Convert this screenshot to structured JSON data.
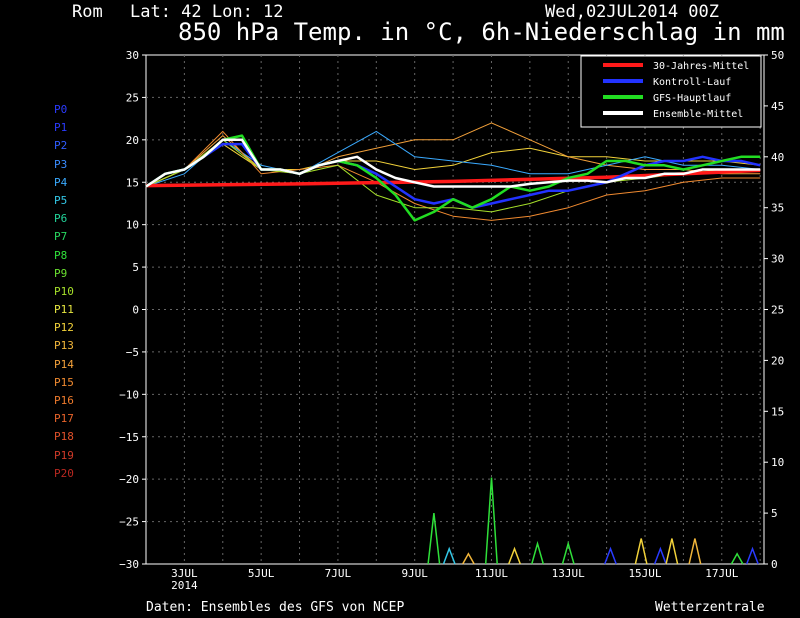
{
  "header": {
    "location": "Rom",
    "coords": "Lat: 42 Lon: 12",
    "run": "Wed,02JUL2014 00Z"
  },
  "title": "850 hPa Temp. in °C, 6h-Niederschlag in mm",
  "footer": {
    "source": "Daten: Ensembles des GFS von NCEP",
    "brand": "Wetterzentrale"
  },
  "members": [
    {
      "label": "P0",
      "color": "#2a3bff"
    },
    {
      "label": "P1",
      "color": "#2a3bff"
    },
    {
      "label": "P2",
      "color": "#2f5cff"
    },
    {
      "label": "P3",
      "color": "#3a8cff"
    },
    {
      "label": "P4",
      "color": "#3aaaff"
    },
    {
      "label": "P5",
      "color": "#33c7e6"
    },
    {
      "label": "P6",
      "color": "#22d49a"
    },
    {
      "label": "P7",
      "color": "#28d860"
    },
    {
      "label": "P8",
      "color": "#2fe03a"
    },
    {
      "label": "P9",
      "color": "#6ae030"
    },
    {
      "label": "P10",
      "color": "#a6e02a"
    },
    {
      "label": "P11",
      "color": "#e6e640"
    },
    {
      "label": "P12",
      "color": "#f2d23a"
    },
    {
      "label": "P13",
      "color": "#f2b63a"
    },
    {
      "label": "P14",
      "color": "#f2a03a"
    },
    {
      "label": "P15",
      "color": "#f08a30"
    },
    {
      "label": "P16",
      "color": "#ee7a2c"
    },
    {
      "label": "P17",
      "color": "#e8642a"
    },
    {
      "label": "P18",
      "color": "#e0502a"
    },
    {
      "label": "P19",
      "color": "#d03a28"
    },
    {
      "label": "P20",
      "color": "#b82820"
    }
  ],
  "chart_data": {
    "type": "line",
    "x_range": [
      "2014-07-02 00Z",
      "2014-07-18"
    ],
    "x_ticks": [
      {
        "pos": 1,
        "label": "3JUL",
        "sub": "2014"
      },
      {
        "pos": 3,
        "label": "5JUL"
      },
      {
        "pos": 5,
        "label": "7JUL"
      },
      {
        "pos": 7,
        "label": "9JUL"
      },
      {
        "pos": 9,
        "label": "11JUL"
      },
      {
        "pos": 11,
        "label": "13JUL"
      },
      {
        "pos": 13,
        "label": "15JUL"
      },
      {
        "pos": 15,
        "label": "17JUL"
      }
    ],
    "y_left": {
      "min": -30,
      "max": 30,
      "step": 5
    },
    "y_right": {
      "min": 0,
      "max": 50,
      "step": 5
    },
    "grid": true,
    "legend_position": "top-right",
    "legend": [
      {
        "label": "30-Jahres-Mittel",
        "color": "#ff1a1a"
      },
      {
        "label": "Kontroll-Lauf",
        "color": "#2233ff"
      },
      {
        "label": "GFS-Hauptlauf",
        "color": "#22dd22"
      },
      {
        "label": "Ensemble-Mittel",
        "color": "#ffffff"
      }
    ],
    "climatology": [
      [
        0,
        14.6
      ],
      [
        4,
        14.8
      ],
      [
        8,
        15.1
      ],
      [
        12,
        15.6
      ],
      [
        16,
        16.4
      ]
    ],
    "ensemble_mean": [
      [
        0,
        14.5
      ],
      [
        0.5,
        16
      ],
      [
        1,
        16.5
      ],
      [
        1.5,
        18
      ],
      [
        2,
        20
      ],
      [
        2.5,
        20
      ],
      [
        3,
        16.5
      ],
      [
        3.5,
        16.5
      ],
      [
        4,
        16
      ],
      [
        4.5,
        17
      ],
      [
        5,
        17.5
      ],
      [
        5.5,
        18
      ],
      [
        6,
        16.5
      ],
      [
        6.5,
        15.5
      ],
      [
        7,
        15
      ],
      [
        7.5,
        14.5
      ],
      [
        8,
        14.5
      ],
      [
        8.5,
        14.5
      ],
      [
        9,
        14.5
      ],
      [
        9.5,
        14.5
      ],
      [
        10,
        14.8
      ],
      [
        10.5,
        15.0
      ],
      [
        11,
        15.2
      ],
      [
        11.5,
        15.2
      ],
      [
        12,
        15.0
      ],
      [
        12.5,
        15.5
      ],
      [
        13,
        15.5
      ],
      [
        13.5,
        16
      ],
      [
        14,
        16
      ],
      [
        14.5,
        16.5
      ],
      [
        15,
        16.5
      ],
      [
        15.5,
        16.5
      ],
      [
        16,
        16.5
      ]
    ],
    "control_run": [
      [
        0,
        14.5
      ],
      [
        0.5,
        16
      ],
      [
        1,
        16.5
      ],
      [
        1.5,
        18
      ],
      [
        2,
        19.5
      ],
      [
        2.5,
        19.5
      ],
      [
        3,
        16.5
      ],
      [
        3.5,
        16.5
      ],
      [
        4,
        16
      ],
      [
        4.5,
        17
      ],
      [
        5,
        17.5
      ],
      [
        5.5,
        17
      ],
      [
        6,
        16
      ],
      [
        6.5,
        14.5
      ],
      [
        7,
        13
      ],
      [
        7.5,
        12.5
      ],
      [
        8,
        13
      ],
      [
        8.5,
        12
      ],
      [
        9,
        12.5
      ],
      [
        9.5,
        13
      ],
      [
        10,
        13.5
      ],
      [
        10.5,
        14
      ],
      [
        11,
        14
      ],
      [
        11.5,
        14.5
      ],
      [
        12,
        15
      ],
      [
        12.5,
        16
      ],
      [
        13,
        17
      ],
      [
        13.5,
        17.5
      ],
      [
        14,
        17.5
      ],
      [
        14.5,
        18
      ],
      [
        15,
        17.5
      ],
      [
        15.5,
        17.5
      ],
      [
        16,
        17
      ]
    ],
    "gfs_main_run": [
      [
        0,
        14.5
      ],
      [
        0.5,
        16
      ],
      [
        1,
        16.5
      ],
      [
        1.5,
        18
      ],
      [
        2,
        20
      ],
      [
        2.5,
        20.5
      ],
      [
        3,
        16.5
      ],
      [
        3.5,
        16.5
      ],
      [
        4,
        16
      ],
      [
        4.5,
        17
      ],
      [
        5,
        17.5
      ],
      [
        5.5,
        17
      ],
      [
        6,
        15.5
      ],
      [
        6.5,
        13.5
      ],
      [
        7,
        10.5
      ],
      [
        7.5,
        11.5
      ],
      [
        8,
        13
      ],
      [
        8.5,
        12
      ],
      [
        9,
        13
      ],
      [
        9.5,
        14.5
      ],
      [
        10,
        14
      ],
      [
        10.5,
        14.5
      ],
      [
        11,
        15.5
      ],
      [
        11.5,
        16
      ],
      [
        12,
        17.5
      ],
      [
        12.5,
        17.5
      ],
      [
        13,
        17
      ],
      [
        13.5,
        17
      ],
      [
        14,
        16.5
      ],
      [
        14.5,
        17
      ],
      [
        15,
        17.5
      ],
      [
        15.5,
        18
      ],
      [
        16,
        18
      ]
    ],
    "members_spread_example": [
      [
        [
          0,
          14.5
        ],
        [
          1,
          16.5
        ],
        [
          2,
          19.5
        ],
        [
          3,
          16.5
        ],
        [
          4,
          16.5
        ],
        [
          5,
          17.5
        ],
        [
          6,
          17.5
        ],
        [
          7,
          16.5
        ],
        [
          8,
          17
        ],
        [
          9,
          18.5
        ],
        [
          10,
          19
        ],
        [
          11,
          18
        ],
        [
          12,
          18
        ],
        [
          13,
          17.5
        ],
        [
          14,
          17.5
        ],
        [
          15,
          17.5
        ],
        [
          16,
          17
        ]
      ],
      [
        [
          0,
          14.5
        ],
        [
          1,
          16.5
        ],
        [
          2,
          20.5
        ],
        [
          3,
          16.5
        ],
        [
          4,
          16
        ],
        [
          5,
          18
        ],
        [
          6,
          19
        ],
        [
          7,
          20
        ],
        [
          8,
          20
        ],
        [
          9,
          22
        ],
        [
          10,
          20
        ],
        [
          11,
          18
        ],
        [
          12,
          17
        ],
        [
          13,
          16.5
        ],
        [
          14,
          16.5
        ],
        [
          15,
          16
        ],
        [
          16,
          16
        ]
      ],
      [
        [
          0,
          14.5
        ],
        [
          1,
          16
        ],
        [
          2,
          20
        ],
        [
          3,
          17
        ],
        [
          4,
          16
        ],
        [
          5,
          18.5
        ],
        [
          6,
          21
        ],
        [
          7,
          18
        ],
        [
          8,
          17.5
        ],
        [
          9,
          17
        ],
        [
          10,
          16
        ],
        [
          11,
          16
        ],
        [
          12,
          17
        ],
        [
          13,
          18
        ],
        [
          14,
          17
        ],
        [
          15,
          17
        ],
        [
          16,
          16.5
        ]
      ],
      [
        [
          0,
          14.5
        ],
        [
          1,
          16.5
        ],
        [
          2,
          21
        ],
        [
          3,
          16
        ],
        [
          4,
          16.5
        ],
        [
          5,
          17
        ],
        [
          6,
          15
        ],
        [
          7,
          12.5
        ],
        [
          8,
          11
        ],
        [
          9,
          10.5
        ],
        [
          10,
          11
        ],
        [
          11,
          12
        ],
        [
          12,
          13.5
        ],
        [
          13,
          14
        ],
        [
          14,
          15
        ],
        [
          15,
          15.5
        ],
        [
          16,
          15.5
        ]
      ],
      [
        [
          0,
          14.5
        ],
        [
          1,
          16.5
        ],
        [
          2,
          20
        ],
        [
          3,
          16.5
        ],
        [
          4,
          16
        ],
        [
          5,
          17
        ],
        [
          6,
          13.5
        ],
        [
          7,
          12
        ],
        [
          8,
          12
        ],
        [
          9,
          11.5
        ],
        [
          10,
          12.5
        ],
        [
          11,
          14
        ],
        [
          12,
          15
        ],
        [
          13,
          15.5
        ],
        [
          14,
          16
        ],
        [
          15,
          16.5
        ],
        [
          16,
          16.5
        ]
      ]
    ],
    "precipitation_peaks_mm": [
      {
        "x": 7.5,
        "value": 5,
        "color": "#2fe03a"
      },
      {
        "x": 7.9,
        "value": 1.5,
        "color": "#33c7e6"
      },
      {
        "x": 8.4,
        "value": 1.0,
        "color": "#f2b63a"
      },
      {
        "x": 9.0,
        "value": 8.5,
        "color": "#2fe03a"
      },
      {
        "x": 9.6,
        "value": 1.5,
        "color": "#f2d23a"
      },
      {
        "x": 10.2,
        "value": 2,
        "color": "#2fe03a"
      },
      {
        "x": 11.0,
        "value": 2,
        "color": "#2fe03a"
      },
      {
        "x": 12.1,
        "value": 1.5,
        "color": "#2a3bff"
      },
      {
        "x": 12.9,
        "value": 2.5,
        "color": "#f2d23a"
      },
      {
        "x": 13.4,
        "value": 1.5,
        "color": "#2a3bff"
      },
      {
        "x": 13.7,
        "value": 2.5,
        "color": "#f2d23a"
      },
      {
        "x": 14.3,
        "value": 2.5,
        "color": "#f2b63a"
      },
      {
        "x": 15.4,
        "value": 1,
        "color": "#2fe03a"
      },
      {
        "x": 15.8,
        "value": 1.5,
        "color": "#2a3bff"
      }
    ]
  }
}
